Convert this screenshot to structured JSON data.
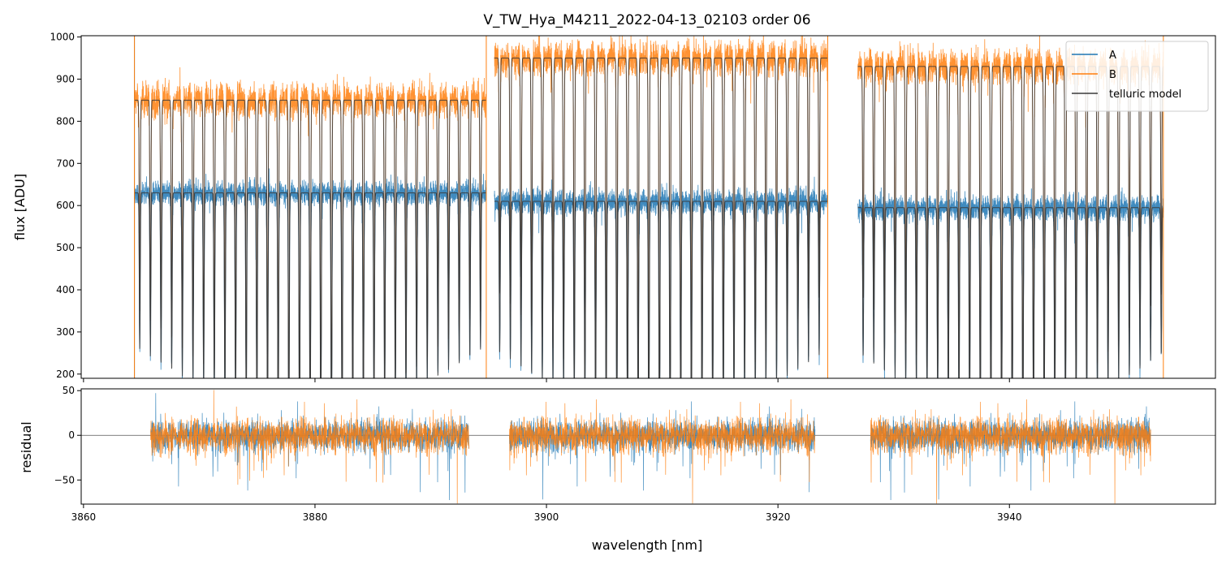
{
  "chart_data": [
    {
      "type": "line",
      "panel": "top",
      "title": "V_TW_Hya_M4211_2022-04-13_02103  order 06",
      "xlabel": "",
      "ylabel": "flux [ADU]",
      "xlim": [
        3859.8,
        3957.8
      ],
      "ylim": [
        190,
        1003
      ],
      "x_ticks": [
        3860,
        3880,
        3900,
        3920,
        3940
      ],
      "y_ticks": [
        200,
        300,
        400,
        500,
        600,
        700,
        800,
        900,
        1000
      ],
      "grid": false,
      "legend": "top-right",
      "segments_x": [
        [
          3864.4,
          3894.8
        ],
        [
          3895.5,
          3924.3
        ],
        [
          3926.9,
          3953.3
        ]
      ],
      "series": [
        {
          "name": "A",
          "color": "#1f77b4",
          "continuum_levels": [
            630,
            610,
            595
          ],
          "line_depth_min": [
            190,
            230,
            250
          ]
        },
        {
          "name": "B",
          "color": "#ff7f0e",
          "continuum_levels": [
            850,
            950,
            930
          ],
          "line_depth_min": [
            190,
            230,
            250
          ]
        },
        {
          "name": "telluric model",
          "color": "#3a3a3a",
          "continuum_levels": [
            850,
            950,
            930
          ]
        }
      ]
    },
    {
      "type": "line",
      "panel": "bottom",
      "xlabel": "wavelength [nm]",
      "ylabel": "residual",
      "xlim": [
        3859.8,
        3957.8
      ],
      "ylim": [
        -77,
        52
      ],
      "x_ticks": [
        3860,
        3880,
        3900,
        3920,
        3940
      ],
      "y_ticks": [
        -50,
        0,
        50
      ],
      "zero_line": 0,
      "segments_x": [
        [
          3865.8,
          3893.3
        ],
        [
          3896.8,
          3923.2
        ],
        [
          3928.0,
          3952.2
        ]
      ],
      "series": [
        {
          "name": "A",
          "color": "#1f77b4"
        },
        {
          "name": "B",
          "color": "#ff7f0e"
        }
      ]
    }
  ]
}
